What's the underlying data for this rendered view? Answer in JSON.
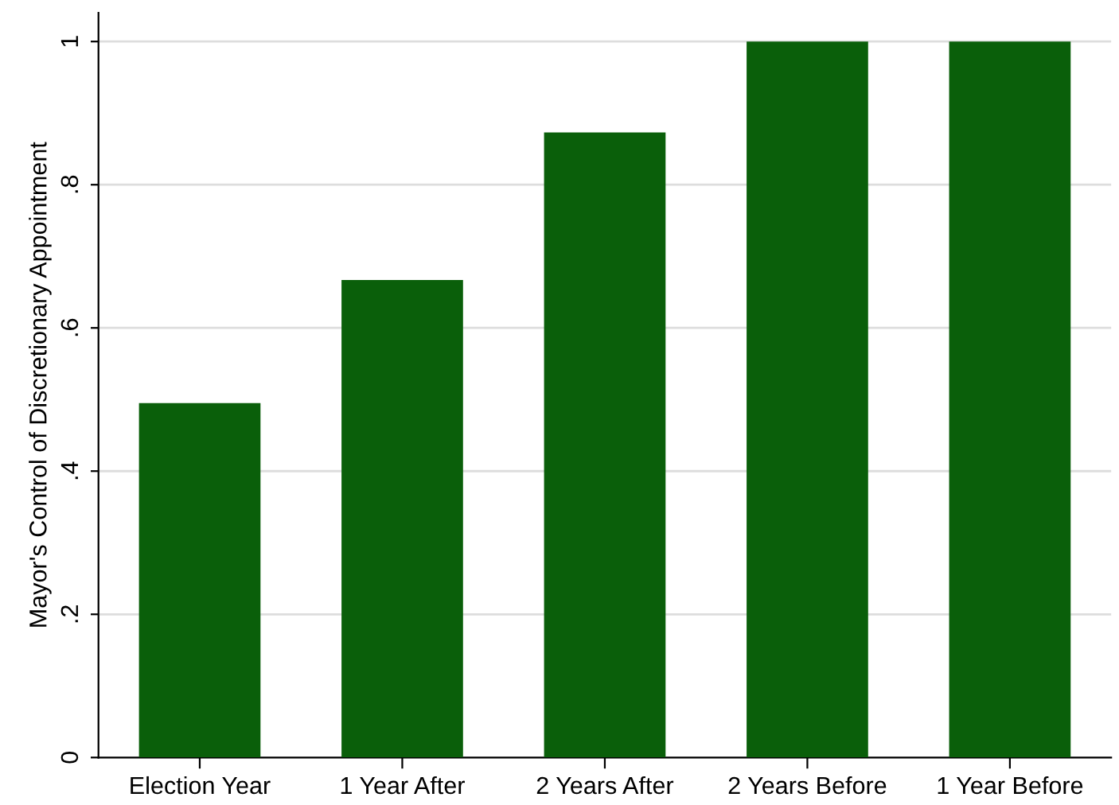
{
  "chart_data": {
    "type": "bar",
    "ylabel": "Mayor's Control of Discretionary Appointment",
    "categories": [
      "Election Year",
      "1 Year After",
      "2 Years After",
      "2 Years Before",
      "1 Year Before"
    ],
    "values": [
      0.495,
      0.667,
      0.873,
      1,
      1
    ],
    "color": "#0a5f0a",
    "ylim": [
      0,
      1.04
    ],
    "yticks": [
      {
        "value": 0,
        "label": "0"
      },
      {
        "value": 0.2,
        "label": ".2"
      },
      {
        "value": 0.4,
        "label": ".4"
      },
      {
        "value": 0.6,
        "label": ".6"
      },
      {
        "value": 0.8,
        "label": ".8"
      },
      {
        "value": 1,
        "label": "1"
      }
    ],
    "grid": "y",
    "legend": false
  }
}
